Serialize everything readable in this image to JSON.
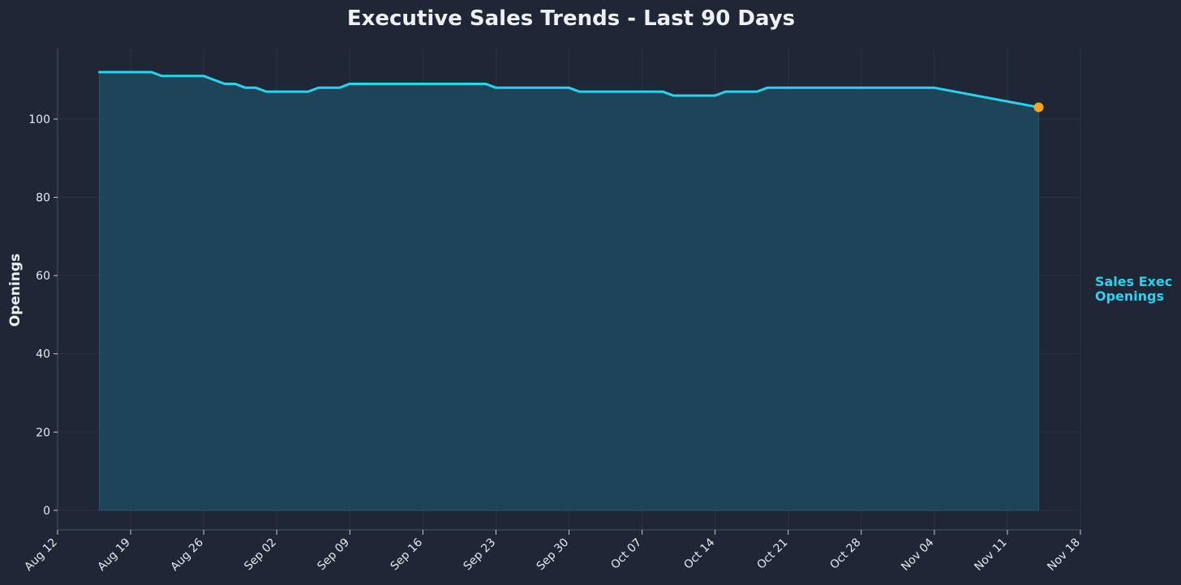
{
  "chart_data": {
    "type": "area",
    "title": "Executive Sales Trends - Last 90 Days",
    "xlabel": "",
    "ylabel": "Openings",
    "xlim": [
      "2024-08-12",
      "2024-11-18"
    ],
    "ylim": [
      -5,
      118
    ],
    "yticks": [
      0,
      20,
      40,
      60,
      80,
      100
    ],
    "xticks": [
      {
        "date": "2024-08-12",
        "label": "Aug 12"
      },
      {
        "date": "2024-08-19",
        "label": "Aug 19"
      },
      {
        "date": "2024-08-26",
        "label": "Aug 26"
      },
      {
        "date": "2024-09-02",
        "label": "Sep 02"
      },
      {
        "date": "2024-09-09",
        "label": "Sep 09"
      },
      {
        "date": "2024-09-16",
        "label": "Sep 16"
      },
      {
        "date": "2024-09-23",
        "label": "Sep 23"
      },
      {
        "date": "2024-09-30",
        "label": "Sep 30"
      },
      {
        "date": "2024-10-07",
        "label": "Oct 07"
      },
      {
        "date": "2024-10-14",
        "label": "Oct 14"
      },
      {
        "date": "2024-10-21",
        "label": "Oct 21"
      },
      {
        "date": "2024-10-28",
        "label": "Oct 28"
      },
      {
        "date": "2024-11-04",
        "label": "Nov 04"
      },
      {
        "date": "2024-11-11",
        "label": "Nov 11"
      },
      {
        "date": "2024-11-18",
        "label": "Nov 18"
      }
    ],
    "grid": true,
    "series": [
      {
        "name": "Sales Exec\nOpenings",
        "color": "#29d3f0",
        "fill_color": "#1e4a5e",
        "last_point_color": "#f5a524",
        "x": [
          "2024-08-16",
          "2024-08-21",
          "2024-08-22",
          "2024-08-26",
          "2024-08-28",
          "2024-08-29",
          "2024-08-30",
          "2024-08-31",
          "2024-09-01",
          "2024-09-05",
          "2024-09-06",
          "2024-09-08",
          "2024-09-09",
          "2024-09-22",
          "2024-09-23",
          "2024-09-30",
          "2024-10-01",
          "2024-10-09",
          "2024-10-10",
          "2024-10-14",
          "2024-10-15",
          "2024-10-18",
          "2024-10-19",
          "2024-11-04",
          "2024-11-14"
        ],
        "y": [
          112,
          112,
          111,
          111,
          109,
          109,
          108,
          108,
          107,
          107,
          108,
          108,
          109,
          109,
          108,
          108,
          107,
          107,
          106,
          106,
          107,
          107,
          108,
          108,
          103
        ]
      }
    ]
  }
}
